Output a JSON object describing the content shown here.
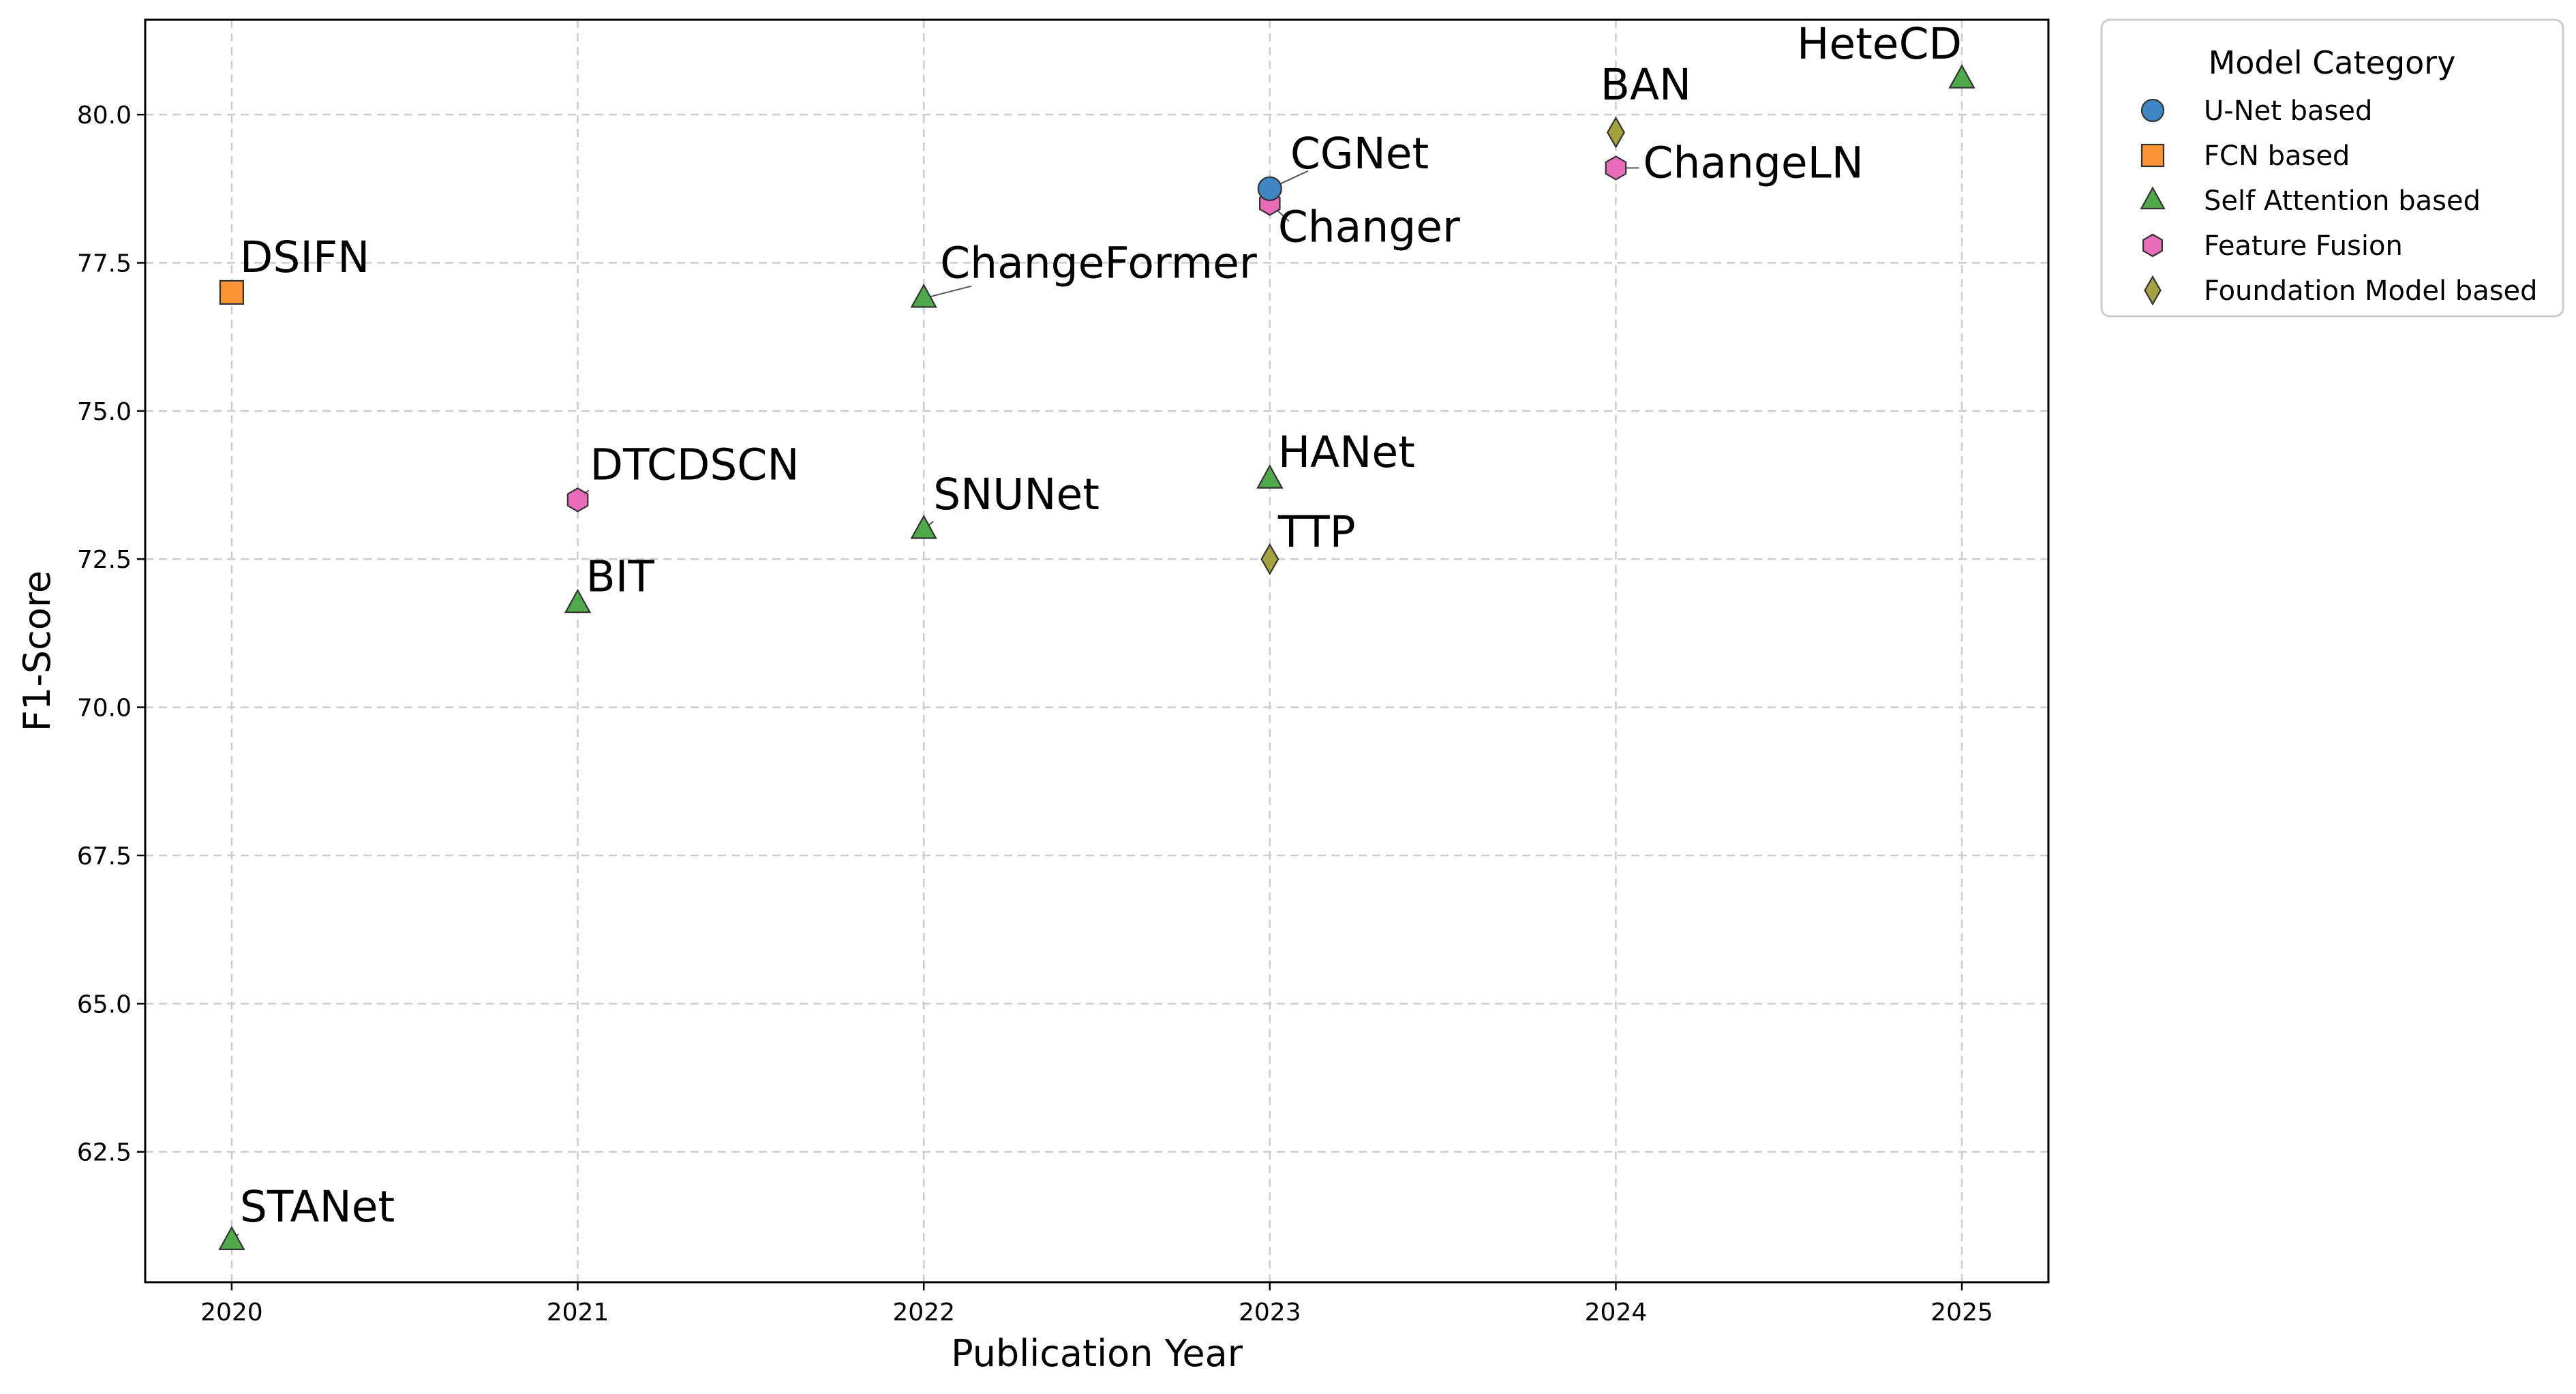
{
  "chart_data": {
    "type": "scatter",
    "xlabel": "Publication Year",
    "ylabel": "F1-Score",
    "xlim": [
      2019.75,
      2025.25
    ],
    "ylim": [
      60.3,
      81.6
    ],
    "xticks": [
      "2020",
      "2021",
      "2022",
      "2023",
      "2024",
      "2025"
    ],
    "yticks": [
      "62.5",
      "65.0",
      "67.5",
      "70.0",
      "72.5",
      "75.0",
      "77.5",
      "80.0"
    ],
    "grid": true,
    "legend": {
      "title": "Model Category",
      "placement": "outside-top-right",
      "entries": [
        {
          "label": "U-Net based",
          "color": "#3f86c2",
          "marker": "circle"
        },
        {
          "label": "FCN based",
          "color": "#fb9434",
          "marker": "square"
        },
        {
          "label": "Self Attention based",
          "color": "#4eaa4a",
          "marker": "triangle"
        },
        {
          "label": "Feature Fusion",
          "color": "#e86cba",
          "marker": "hexagon"
        },
        {
          "label": "Foundation Model based",
          "color": "#a3a23e",
          "marker": "diamond"
        }
      ]
    },
    "points": [
      {
        "label": "STANet",
        "x": 2020,
        "y": 61.0,
        "category": 2
      },
      {
        "label": "DSIFN",
        "x": 2020,
        "y": 77.0,
        "category": 1
      },
      {
        "label": "BIT",
        "x": 2021,
        "y": 71.75,
        "category": 2
      },
      {
        "label": "DTCDSCN",
        "x": 2021,
        "y": 73.5,
        "category": 3
      },
      {
        "label": "SNUNet",
        "x": 2022,
        "y": 73.0,
        "category": 2
      },
      {
        "label": "ChangeFormer",
        "x": 2022,
        "y": 76.9,
        "category": 2
      },
      {
        "label": "TTP",
        "x": 2023,
        "y": 72.5,
        "category": 4
      },
      {
        "label": "HANet",
        "x": 2023,
        "y": 73.85,
        "category": 2
      },
      {
        "label": "Changer",
        "x": 2023,
        "y": 78.5,
        "category": 3
      },
      {
        "label": "CGNet",
        "x": 2023,
        "y": 78.75,
        "category": 0
      },
      {
        "label": "ChangeLN",
        "x": 2024,
        "y": 79.1,
        "category": 3
      },
      {
        "label": "BAN",
        "x": 2024,
        "y": 79.7,
        "category": 4
      },
      {
        "label": "HeteCD",
        "x": 2025,
        "y": 80.6,
        "category": 2
      }
    ]
  }
}
